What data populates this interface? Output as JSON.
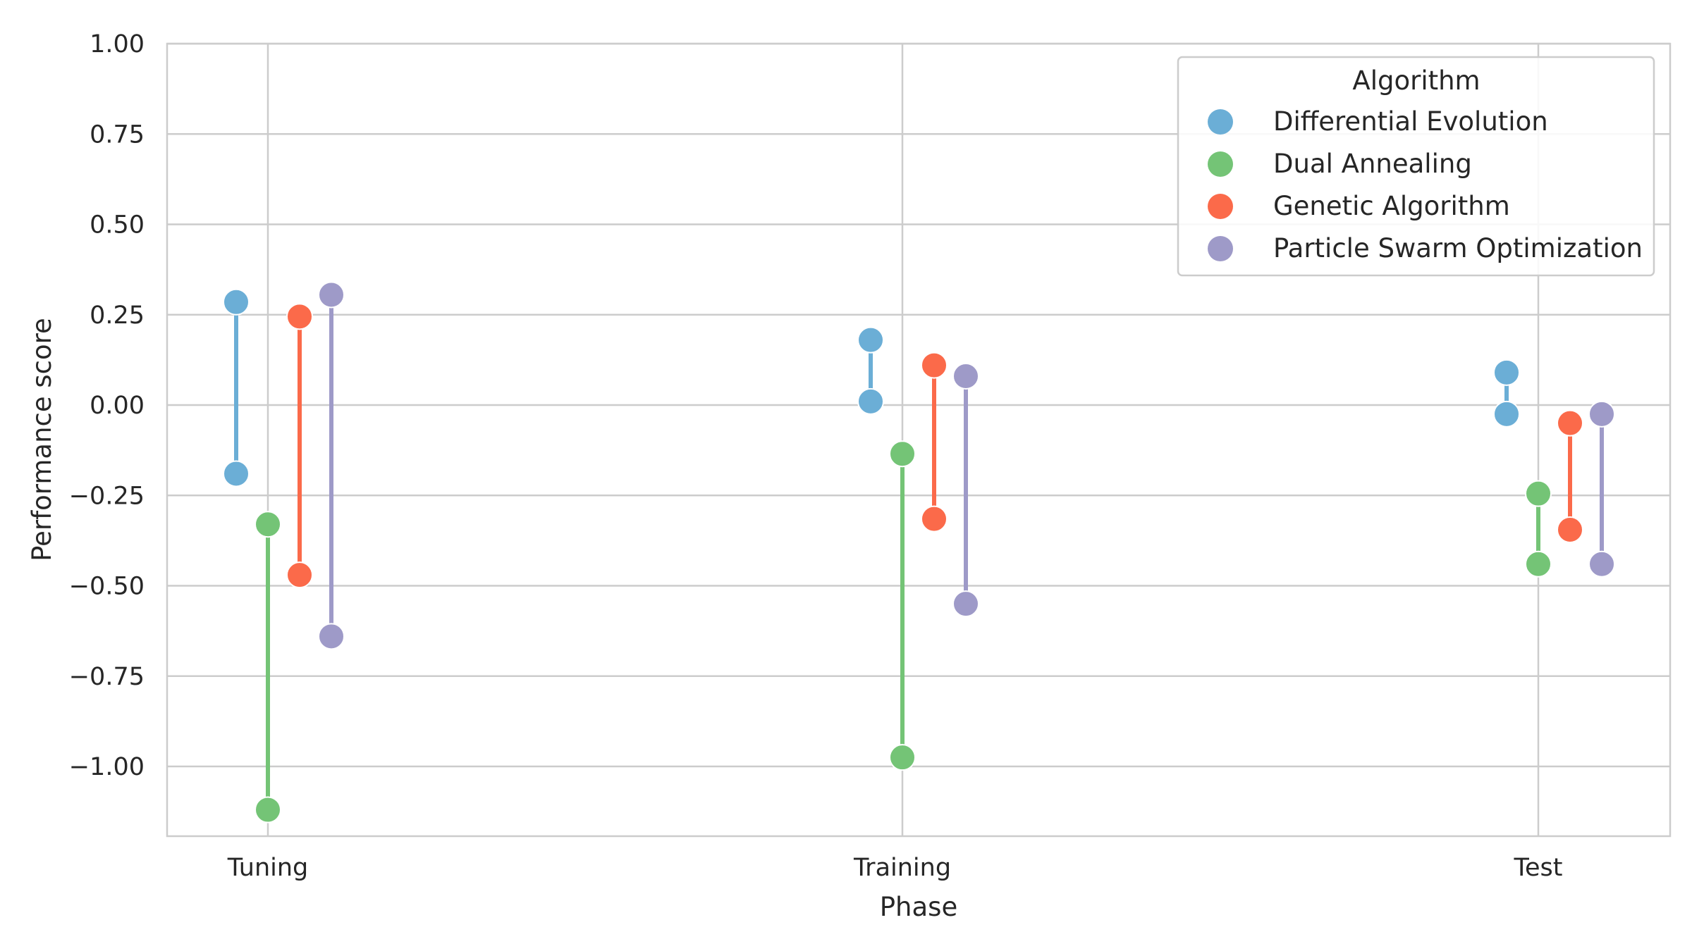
{
  "chart_data": {
    "type": "scatter",
    "categories": [
      "Tuning",
      "Training",
      "Test"
    ],
    "xlabel": "Phase",
    "ylabel": "Performance score",
    "ylim": [
      -1.19,
      1.0
    ],
    "yticks": [
      1.0,
      0.75,
      0.5,
      0.25,
      0.0,
      -0.25,
      -0.5,
      -0.75,
      -1.0
    ],
    "ytick_labels": [
      "1.00",
      "0.75",
      "0.50",
      "0.25",
      "0.00",
      "−0.25",
      "−0.50",
      "−0.75",
      "−1.00"
    ],
    "grid": true,
    "legend": {
      "title": "Algorithm",
      "placement": "top-right"
    },
    "series": [
      {
        "name": "Differential Evolution",
        "color": "#6baed6",
        "ranges": [
          [
            -0.19,
            0.285
          ],
          [
            0.01,
            0.18
          ],
          [
            -0.025,
            0.09
          ]
        ]
      },
      {
        "name": "Dual Annealing",
        "color": "#74c476",
        "ranges": [
          [
            -1.12,
            -0.33
          ],
          [
            -0.975,
            -0.135
          ],
          [
            -0.44,
            -0.245
          ]
        ]
      },
      {
        "name": "Genetic Algorithm",
        "color": "#fb6a4a",
        "ranges": [
          [
            -0.47,
            0.245
          ],
          [
            -0.315,
            0.11
          ],
          [
            -0.345,
            -0.05
          ]
        ]
      },
      {
        "name": "Particle Swarm Optimization",
        "color": "#9e9ac8",
        "ranges": [
          [
            -0.64,
            0.305
          ],
          [
            -0.55,
            0.08
          ],
          [
            -0.44,
            -0.025
          ]
        ]
      }
    ]
  }
}
